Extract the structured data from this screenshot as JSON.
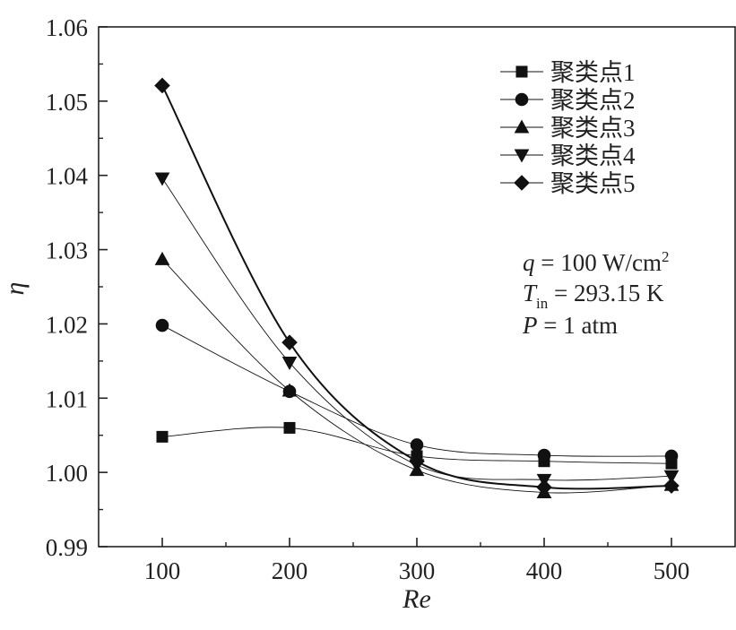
{
  "chart_data": {
    "type": "line",
    "x": [
      100,
      200,
      300,
      400,
      500
    ],
    "xlabel": "Re",
    "ylabel": "η",
    "xlim": [
      50,
      550
    ],
    "ylim": [
      0.99,
      1.06
    ],
    "xticks": [
      "100",
      "200",
      "300",
      "400",
      "500"
    ],
    "yticks": [
      "0.99",
      "1.00",
      "1.01",
      "1.02",
      "1.03",
      "1.04",
      "1.05",
      "1.06"
    ],
    "series": [
      {
        "name": "聚类点1",
        "marker": "square",
        "values": [
          1.0048,
          1.006,
          1.0022,
          1.0015,
          1.0012
        ]
      },
      {
        "name": "聚类点2",
        "marker": "circle",
        "values": [
          1.0198,
          1.0109,
          1.0037,
          1.0023,
          1.0022
        ]
      },
      {
        "name": "聚类点3",
        "marker": "triangle-up",
        "values": [
          1.0287,
          1.011,
          1.0003,
          0.9973,
          0.9983
        ]
      },
      {
        "name": "聚类点4",
        "marker": "triangle-down",
        "values": [
          1.0396,
          1.0148,
          1.001,
          0.999,
          0.9995
        ]
      },
      {
        "name": "聚类点5",
        "marker": "diamond",
        "values": [
          1.0521,
          1.0175,
          1.0015,
          0.998,
          0.9982
        ]
      }
    ],
    "legend_position": "top-right",
    "grid": false
  },
  "annotations": {
    "q_symbol": "q",
    "q_value": " = 100 W/cm",
    "q_sup": "2",
    "t_symbol": "T",
    "t_sub": "in",
    "t_value": " = 293.15 K",
    "p_symbol": "P",
    "p_value": " = 1 atm"
  }
}
